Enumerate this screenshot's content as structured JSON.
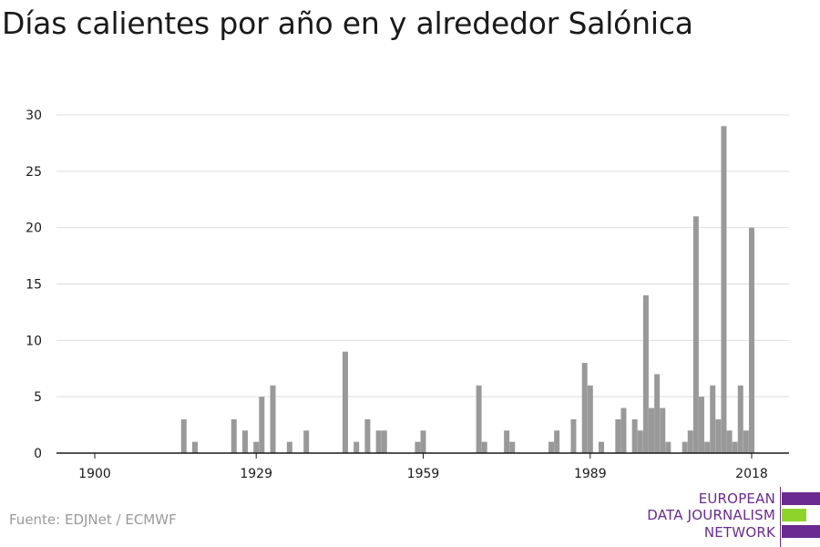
{
  "title": "Días calientes por año en y alrededor Salónica",
  "source": "Fuente: EDJNet / ECMWF",
  "logo": {
    "line1": "EUROPEAN",
    "line2": "DATA JOURNALISM",
    "line3": "NETWORK",
    "colors": {
      "purple": "#6a2a8f",
      "green": "#8dd32c"
    }
  },
  "chart_data": {
    "type": "bar",
    "title": "Días calientes por año en y alrededor Salónica",
    "xlabel": "",
    "ylabel": "",
    "bar_color": "#999999",
    "grid": true,
    "xlim": [
      1900,
      2020
    ],
    "ylim": [
      0,
      30
    ],
    "x_ticks": [
      1900,
      1929,
      1959,
      1989,
      2018
    ],
    "y_ticks": [
      0,
      5,
      10,
      15,
      20,
      25,
      30
    ],
    "points": [
      [
        1916,
        3
      ],
      [
        1918,
        1
      ],
      [
        1925,
        3
      ],
      [
        1927,
        2
      ],
      [
        1929,
        1
      ],
      [
        1930,
        5
      ],
      [
        1932,
        6
      ],
      [
        1935,
        1
      ],
      [
        1938,
        2
      ],
      [
        1945,
        9
      ],
      [
        1947,
        1
      ],
      [
        1949,
        3
      ],
      [
        1951,
        2
      ],
      [
        1952,
        2
      ],
      [
        1958,
        1
      ],
      [
        1959,
        2
      ],
      [
        1969,
        6
      ],
      [
        1970,
        1
      ],
      [
        1974,
        2
      ],
      [
        1975,
        1
      ],
      [
        1982,
        1
      ],
      [
        1983,
        2
      ],
      [
        1986,
        3
      ],
      [
        1988,
        8
      ],
      [
        1989,
        6
      ],
      [
        1991,
        1
      ],
      [
        1994,
        3
      ],
      [
        1995,
        4
      ],
      [
        1997,
        3
      ],
      [
        1998,
        2
      ],
      [
        1999,
        14
      ],
      [
        2000,
        4
      ],
      [
        2001,
        7
      ],
      [
        2002,
        4
      ],
      [
        2003,
        1
      ],
      [
        2006,
        1
      ],
      [
        2007,
        2
      ],
      [
        2008,
        21
      ],
      [
        2009,
        5
      ],
      [
        2010,
        1
      ],
      [
        2011,
        6
      ],
      [
        2012,
        3
      ],
      [
        2013,
        29
      ],
      [
        2014,
        2
      ],
      [
        2015,
        1
      ],
      [
        2016,
        6
      ],
      [
        2017,
        2
      ],
      [
        2018,
        20
      ]
    ]
  }
}
